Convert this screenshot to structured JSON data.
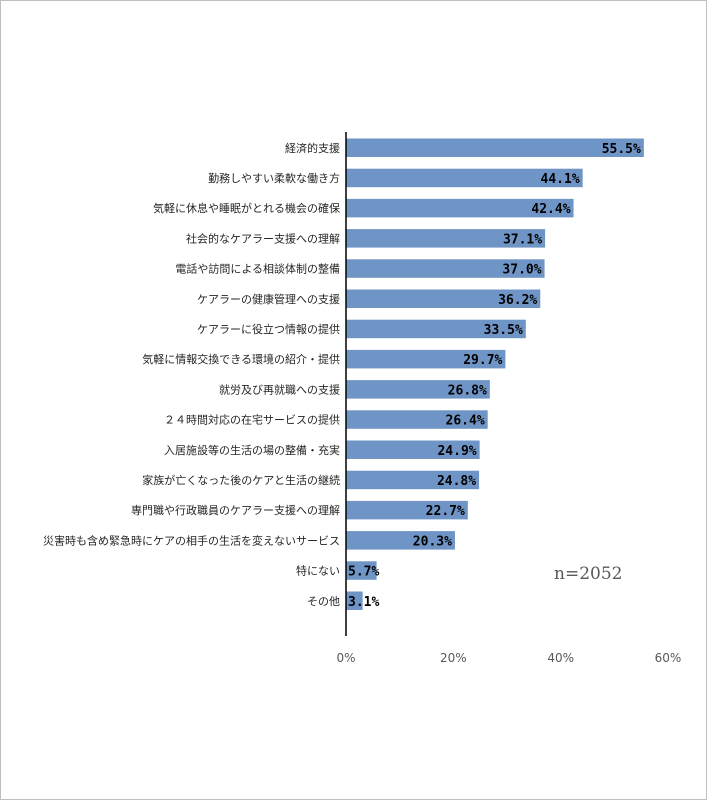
{
  "chart_data": {
    "type": "bar",
    "orientation": "horizontal",
    "categories": [
      "経済的支援",
      "勤務しやすい柔軟な働き方",
      "気軽に休息や睡眠がとれる機会の確保",
      "社会的なケアラー支援への理解",
      "電話や訪問による相談体制の整備",
      "ケアラーの健康管理への支援",
      "ケアラーに役立つ情報の提供",
      "気軽に情報交換できる環境の紹介・提供",
      "就労及び再就職への支援",
      "２４時間対応の在宅サービスの提供",
      "入居施設等の生活の場の整備・充実",
      "家族が亡くなった後のケアと生活の継続",
      "専門職や行政職員のケアラー支援への理解",
      "災害時も含め緊急時にケアの相手の生活を変えないサービス",
      "特にない",
      "その他"
    ],
    "values": [
      55.5,
      44.1,
      42.4,
      37.1,
      37.0,
      36.2,
      33.5,
      29.7,
      26.8,
      26.4,
      24.9,
      24.8,
      22.7,
      20.3,
      5.7,
      3.1
    ],
    "value_labels": [
      "55.5%",
      "44.1%",
      "42.4%",
      "37.1%",
      "37.0%",
      "36.2%",
      "33.5%",
      "29.7%",
      "26.8%",
      "26.4%",
      "24.9%",
      "24.8%",
      "22.7%",
      "20.3%",
      "5.7%",
      "3.1%"
    ],
    "xlim": [
      0,
      60
    ],
    "x_ticks": [
      "0%",
      "20%",
      "40%",
      "60%"
    ],
    "x_tick_values": [
      0,
      20,
      40,
      60
    ],
    "grid": false,
    "bar_color": "#6f95c7",
    "annotation": "n=2052"
  }
}
